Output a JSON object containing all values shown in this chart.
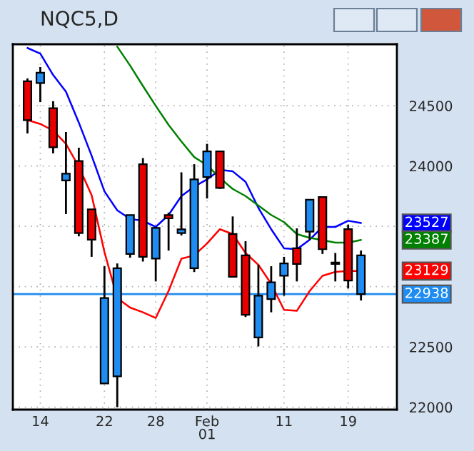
{
  "chart_data": {
    "type": "candlestick",
    "title": "NQC5,D",
    "categories": [
      null,
      "14",
      null,
      null,
      null,
      null,
      "22",
      null,
      null,
      null,
      "28",
      null,
      null,
      null,
      "Feb\n01",
      null,
      null,
      null,
      null,
      null,
      "11",
      null,
      null,
      null,
      null,
      "19",
      null
    ],
    "ohlc": [
      [
        24381,
        24727,
        24270,
        24703
      ],
      [
        24774,
        24821,
        24530,
        24688
      ],
      [
        24156,
        24538,
        24105,
        24479
      ],
      [
        23936,
        24282,
        23602,
        23881
      ],
      [
        23444,
        24152,
        23417,
        24042
      ],
      [
        23389,
        23641,
        23247,
        23641
      ],
      [
        22905,
        23169,
        22197,
        22197
      ],
      [
        23153,
        23192,
        22000,
        22256
      ],
      [
        23594,
        23594,
        23240,
        23271
      ],
      [
        23247,
        24066,
        23208,
        24015
      ],
      [
        23487,
        23495,
        23043,
        23232
      ],
      [
        23566,
        23613,
        23299,
        23594
      ],
      [
        23475,
        23948,
        23424,
        23444
      ],
      [
        23889,
        24015,
        23121,
        23153
      ],
      [
        24121,
        24184,
        23731,
        23908
      ],
      [
        23818,
        24121,
        23810,
        24121
      ],
      [
        23082,
        23582,
        23082,
        23436
      ],
      [
        22767,
        23377,
        22748,
        23259
      ],
      [
        22925,
        23181,
        22504,
        22578
      ],
      [
        23035,
        23169,
        22787,
        22897
      ],
      [
        23192,
        23247,
        22925,
        23090
      ],
      [
        23188,
        23483,
        23043,
        23318
      ],
      [
        23720,
        23720,
        23389,
        23456
      ],
      [
        23310,
        23743,
        23271,
        23743
      ],
      [
        23200,
        23279,
        23043,
        23188
      ],
      [
        23051,
        23514,
        22984,
        23476
      ],
      [
        23259,
        23299,
        22885,
        22938
      ]
    ],
    "colors": [
      "#e80000",
      "#1e8cf0",
      "#e80000",
      "#1e8cf0",
      "#e80000",
      "#e80000",
      "#1e8cf0",
      "#1e8cf0",
      "#1e8cf0",
      "#e80000",
      "#1e8cf0",
      "#e80000",
      "#1e8cf0",
      "#1e8cf0",
      "#1e8cf0",
      "#e80000",
      "#e80000",
      "#e80000",
      "#1e8cf0",
      "#1e8cf0",
      "#1e8cf0",
      "#e80000",
      "#1e8cf0",
      "#e80000",
      "#1e8cf0",
      "#e80000",
      "#1e8cf0"
    ],
    "series": [
      {
        "type": "line",
        "color": "#ff0000",
        "values": [
          24381,
          24349,
          24294,
          24184,
          23995,
          23759,
          23287,
          22905,
          22826,
          22787,
          22740,
          22964,
          23232,
          23259,
          23358,
          23476,
          23436,
          23279,
          23181,
          23023,
          22807,
          22799,
          22964,
          23090,
          23122,
          23129,
          23129
        ]
      },
      {
        "type": "line",
        "color": "#0000ff",
        "values": [
          24979,
          24932,
          24755,
          24617,
          24361,
          24086,
          23790,
          23633,
          23562,
          23546,
          23495,
          23594,
          23751,
          23830,
          23889,
          23968,
          23956,
          23869,
          23653,
          23476,
          23318,
          23310,
          23389,
          23495,
          23495,
          23546,
          23527
        ]
      },
      {
        "type": "line",
        "color": "#008000",
        "values": [
          null,
          null,
          null,
          null,
          null,
          null,
          null,
          24990,
          24833,
          24664,
          24499,
          24341,
          24204,
          24074,
          24007,
          23901,
          23810,
          23751,
          23672,
          23594,
          23535,
          23436,
          23405,
          23385,
          23365,
          23365,
          23387
        ]
      }
    ],
    "ylim": [
      21980,
      25010
    ],
    "yticks": [
      22000,
      22500,
      {
        "value": 23000,
        "label": null
      },
      {
        "value": 23500,
        "label": null
      },
      24000,
      24500
    ],
    "grid": true,
    "ref_lines": [
      {
        "axis": "y",
        "value": 22938,
        "label": "22938",
        "color": "#1e8cf0"
      }
    ],
    "annotations": [
      "23129",
      "23527",
      "23387"
    ]
  }
}
